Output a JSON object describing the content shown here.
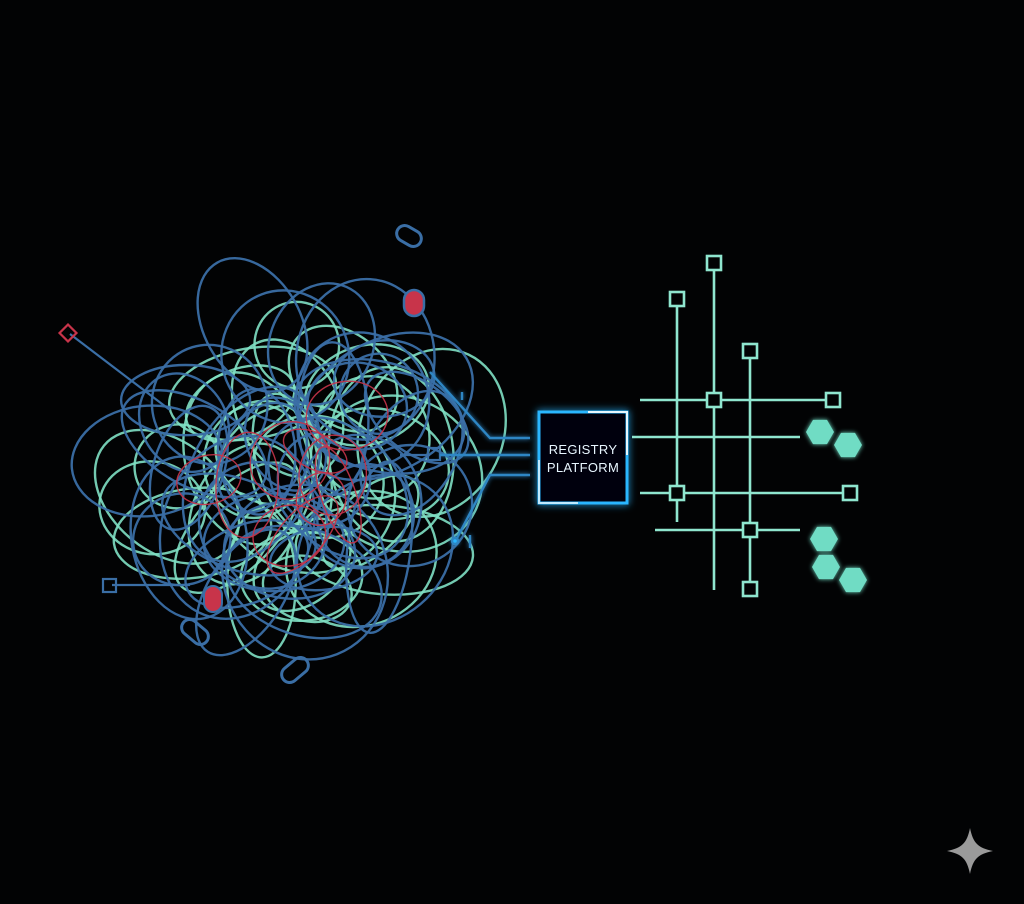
{
  "platform": {
    "line1": "REGISTRY",
    "line2": "PLATFORM"
  },
  "colors": {
    "background": "#020304",
    "tangle_blue": "#3a6ea5",
    "tangle_mint": "#7fe0c4",
    "tangle_red": "#c8344a",
    "platform_glow": "#29b6ff",
    "grid_mint": "#8fe6cf",
    "hex_mint": "#6fdcc4"
  },
  "icons": {
    "corner": "sparkle-icon"
  }
}
